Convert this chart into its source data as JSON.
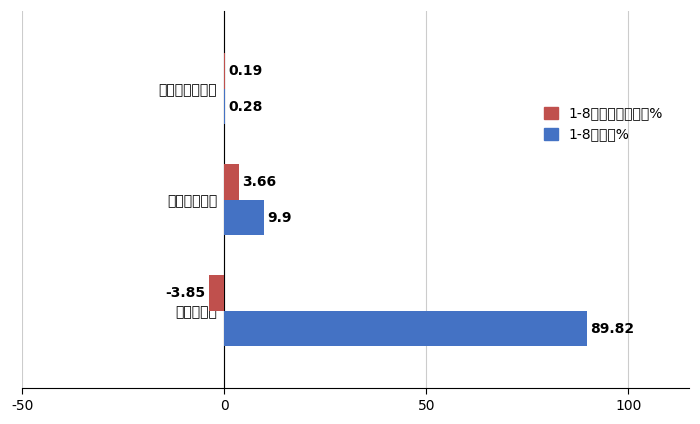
{
  "categories": [
    "插电式混动重卡",
    "燃料电池重卡",
    "纯电动重卡"
  ],
  "series1_label": "1-8月占比同比增减%",
  "series2_label": "1-8月占比%",
  "series1_values": [
    0.19,
    3.66,
    -3.85
  ],
  "series2_values": [
    0.28,
    9.9,
    89.82
  ],
  "series1_color": "#C0504D",
  "series2_color": "#4472C4",
  "xlim": [
    -50,
    115
  ],
  "xticks": [
    -50,
    0,
    50,
    100
  ],
  "bar_height": 0.32,
  "background_color": "#ffffff",
  "grid_color": "#cccccc",
  "label_fontsize": 10,
  "tick_fontsize": 10,
  "legend_fontsize": 10,
  "figwidth": 7.0,
  "figheight": 4.24,
  "dpi": 100
}
